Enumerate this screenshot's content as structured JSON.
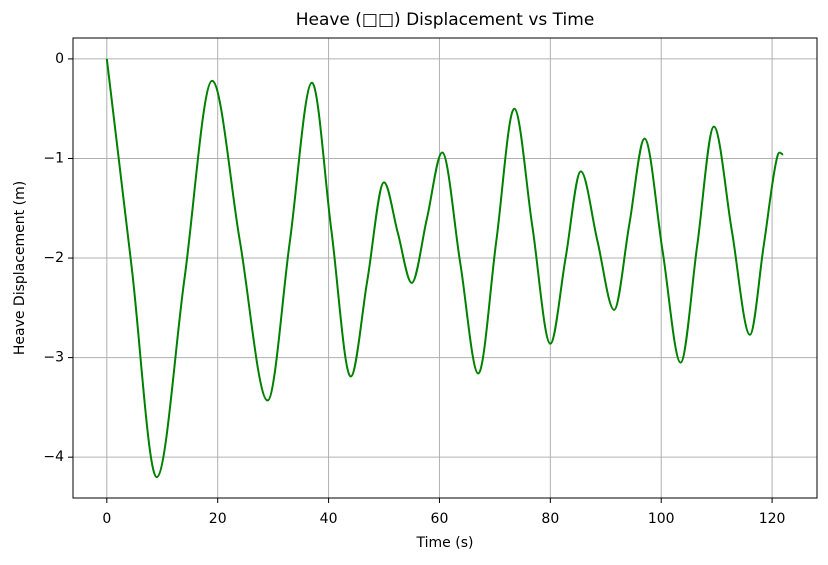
{
  "chart_data": {
    "type": "line",
    "title": "Heave (□□) Displacement vs Time",
    "xlabel": "Time (s)",
    "ylabel": "Heave Displacement (m)",
    "x": [
      0,
      4.5,
      9,
      14,
      19,
      24,
      29,
      33,
      37,
      40.5,
      44,
      47,
      50,
      52.5,
      55,
      57.75,
      60.5,
      63.75,
      67,
      70.25,
      73.5,
      76.75,
      80,
      82.75,
      85.5,
      88.5,
      91.5,
      94.25,
      97,
      100.25,
      103.5,
      106.5,
      109.5,
      112.75,
      116,
      118.5,
      121,
      122
    ],
    "series": [
      {
        "name": "Heave",
        "color": "#008000",
        "values": [
          0,
          -2.1,
          -4.2,
          -2.21,
          -0.22,
          -1.83,
          -3.43,
          -1.84,
          -0.24,
          -1.72,
          -3.19,
          -2.22,
          -1.24,
          -1.75,
          -2.25,
          -1.6,
          -0.94,
          -2.05,
          -3.16,
          -1.83,
          -0.5,
          -1.68,
          -2.86,
          -2.0,
          -1.13,
          -1.83,
          -2.52,
          -1.66,
          -0.8,
          -1.93,
          -3.05,
          -1.87,
          -0.68,
          -1.73,
          -2.77,
          -1.87,
          -0.97,
          -0.96
        ]
      }
    ],
    "xlim": [
      -6.1,
      128.1
    ],
    "ylim": [
      -4.41,
      0.21
    ],
    "xticks": [
      0,
      20,
      40,
      60,
      80,
      100,
      120
    ],
    "yticks": [
      0,
      {
        "value": -1,
        "label": "−1"
      },
      {
        "value": -2,
        "label": "−2"
      },
      {
        "value": -3,
        "label": "−3"
      },
      {
        "value": -4,
        "label": "−4"
      }
    ],
    "grid": true
  }
}
